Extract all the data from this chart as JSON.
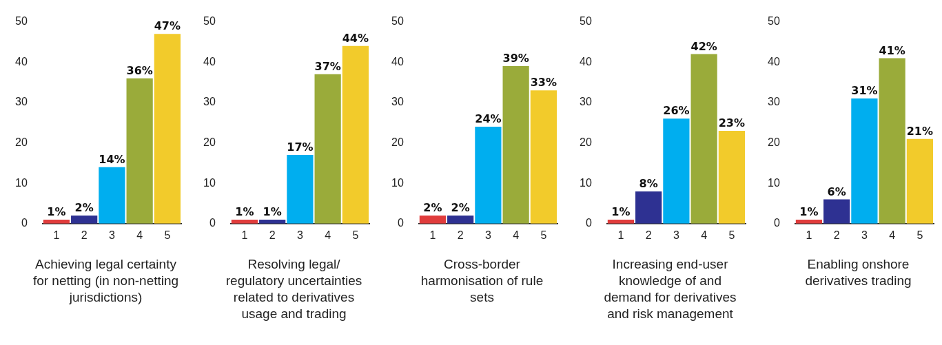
{
  "chart_data": [
    {
      "type": "bar",
      "xlabel": "Achieving legal certainty for netting (in non-netting jurisdictions)",
      "categories": [
        "1",
        "2",
        "3",
        "4",
        "5"
      ],
      "values": [
        1,
        2,
        14,
        36,
        47
      ],
      "colors": [
        "#e03c3c",
        "#2e3192",
        "#00aeef",
        "#9aab3a",
        "#f2cb2b"
      ],
      "value_labels": [
        "1%",
        "2%",
        "14%",
        "36%",
        "47%"
      ],
      "ylim": [
        0,
        50
      ],
      "yticks": [
        0,
        10,
        20,
        30,
        40,
        50
      ],
      "grid": false,
      "legend": false
    },
    {
      "type": "bar",
      "xlabel": "Resolving legal/ regulatory uncertainties related to derivatives usage and trading",
      "categories": [
        "1",
        "2",
        "3",
        "4",
        "5"
      ],
      "values": [
        1,
        1,
        17,
        37,
        44
      ],
      "colors": [
        "#e03c3c",
        "#2e3192",
        "#00aeef",
        "#9aab3a",
        "#f2cb2b"
      ],
      "value_labels": [
        "1%",
        "1%",
        "17%",
        "37%",
        "44%"
      ],
      "ylim": [
        0,
        50
      ],
      "yticks": [
        0,
        10,
        20,
        30,
        40,
        50
      ],
      "grid": false,
      "legend": false
    },
    {
      "type": "bar",
      "xlabel": "Cross-border harmonisation of rule sets",
      "categories": [
        "1",
        "2",
        "3",
        "4",
        "5"
      ],
      "values": [
        2,
        2,
        24,
        39,
        33
      ],
      "colors": [
        "#e03c3c",
        "#2e3192",
        "#00aeef",
        "#9aab3a",
        "#f2cb2b"
      ],
      "value_labels": [
        "2%",
        "2%",
        "24%",
        "39%",
        "33%"
      ],
      "ylim": [
        0,
        50
      ],
      "yticks": [
        0,
        10,
        20,
        30,
        40,
        50
      ],
      "grid": false,
      "legend": false
    },
    {
      "type": "bar",
      "xlabel": "Increasing end-user knowledge of and demand for derivatives and risk management",
      "categories": [
        "1",
        "2",
        "3",
        "4",
        "5"
      ],
      "values": [
        1,
        8,
        26,
        42,
        23
      ],
      "colors": [
        "#e03c3c",
        "#2e3192",
        "#00aeef",
        "#9aab3a",
        "#f2cb2b"
      ],
      "value_labels": [
        "1%",
        "8%",
        "26%",
        "42%",
        "23%"
      ],
      "ylim": [
        0,
        50
      ],
      "yticks": [
        0,
        10,
        20,
        30,
        40,
        50
      ],
      "grid": false,
      "legend": false
    },
    {
      "type": "bar",
      "xlabel": "Enabling onshore derivatives trading",
      "categories": [
        "1",
        "2",
        "3",
        "4",
        "5"
      ],
      "values": [
        1,
        6,
        31,
        41,
        21
      ],
      "colors": [
        "#e03c3c",
        "#2e3192",
        "#00aeef",
        "#9aab3a",
        "#f2cb2b"
      ],
      "value_labels": [
        "1%",
        "6%",
        "31%",
        "41%",
        "21%"
      ],
      "ylim": [
        0,
        50
      ],
      "yticks": [
        0,
        10,
        20,
        30,
        40,
        50
      ],
      "grid": false,
      "legend": false
    }
  ]
}
